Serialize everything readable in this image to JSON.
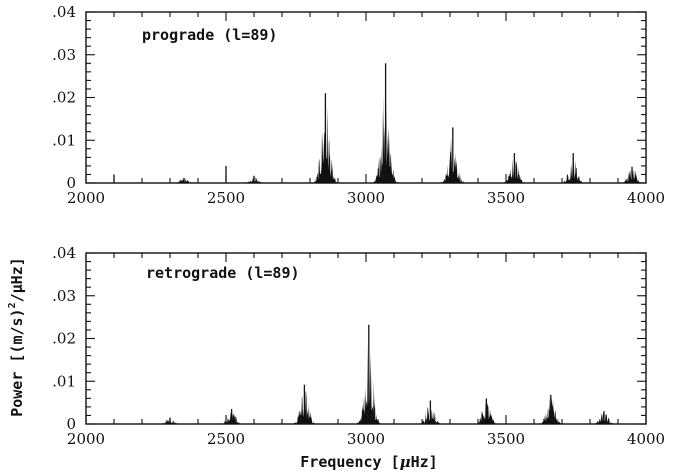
{
  "figure": {
    "xlabel_prefix": "Frequency [",
    "xlabel_mu": "μ",
    "xlabel_unit": "Hz]",
    "ylabel_prefix": "Power [(m/s)",
    "ylabel_sup": "2",
    "ylabel_suffix": "/μHz]"
  },
  "chart_data": [
    {
      "type": "line",
      "name": "prograde",
      "panel_label": "prograde (l=89)",
      "xlim": [
        2000,
        4000
      ],
      "ylim": [
        0,
        0.04
      ],
      "x_ticks": [
        2000,
        2500,
        3000,
        3500,
        4000
      ],
      "x_tick_labels": [
        "2000",
        "2500",
        "3000",
        "3500",
        "4000"
      ],
      "y_ticks": [
        0,
        0.01,
        0.02,
        0.03,
        0.04
      ],
      "y_tick_labels": [
        "0",
        ".01",
        ".02",
        ".03",
        ".04"
      ],
      "peaks": [
        {
          "x": 2350,
          "height": 0.0012
        },
        {
          "x": 2600,
          "height": 0.0017
        },
        {
          "x": 2855,
          "height": 0.021
        },
        {
          "x": 3070,
          "height": 0.028
        },
        {
          "x": 3310,
          "height": 0.013
        },
        {
          "x": 3530,
          "height": 0.007
        },
        {
          "x": 3740,
          "height": 0.007
        },
        {
          "x": 3950,
          "height": 0.0038
        }
      ],
      "spikes": [
        {
          "x": 2100,
          "height": 0.002
        },
        {
          "x": 2500,
          "height": 0.004
        }
      ]
    },
    {
      "type": "line",
      "name": "retrograde",
      "panel_label": "retrograde (l=89)",
      "xlim": [
        2000,
        4000
      ],
      "ylim": [
        0,
        0.04
      ],
      "x_ticks": [
        2000,
        2500,
        3000,
        3500,
        4000
      ],
      "x_tick_labels": [
        "2000",
        "2500",
        "3000",
        "3500",
        "4000"
      ],
      "y_ticks": [
        0,
        0.01,
        0.02,
        0.03,
        0.04
      ],
      "y_tick_labels": [
        "0",
        ".01",
        ".02",
        ".03",
        ".04"
      ],
      "peaks": [
        {
          "x": 2300,
          "height": 0.0015
        },
        {
          "x": 2520,
          "height": 0.0035
        },
        {
          "x": 2780,
          "height": 0.0092
        },
        {
          "x": 3010,
          "height": 0.0232
        },
        {
          "x": 3230,
          "height": 0.0055
        },
        {
          "x": 3430,
          "height": 0.006
        },
        {
          "x": 3660,
          "height": 0.0068
        },
        {
          "x": 3850,
          "height": 0.003
        }
      ],
      "spikes": []
    }
  ]
}
